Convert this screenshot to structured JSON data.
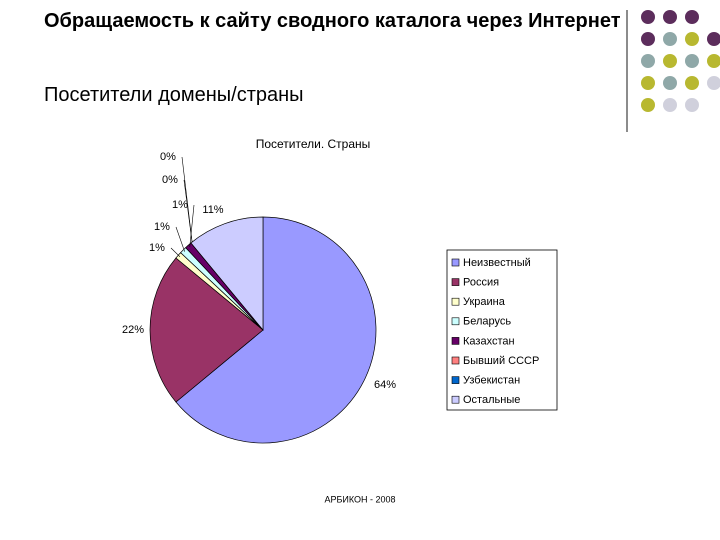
{
  "header": {
    "title": "Обращаемость к сайту сводного каталога через Интернет",
    "subtitle": "Посетители домены/страны"
  },
  "footer": "АРБИКОН - 2008",
  "chart_data": {
    "type": "pie",
    "title": "Посетители. Страны",
    "categories": [
      "Неизвестный",
      "Россия",
      "Украина",
      "Беларусь",
      "Казахстан",
      "Бывший СССР",
      "Узбекистан",
      "Остальные"
    ],
    "values": [
      64,
      22,
      1,
      1,
      1,
      0,
      0,
      11
    ],
    "value_labels": [
      "64%",
      "22%",
      "1%",
      "1%",
      "1%",
      "0%",
      "0%",
      "11%"
    ],
    "colors": [
      "#9999ff",
      "#993366",
      "#ffffcc",
      "#ccffff",
      "#660066",
      "#ff8080",
      "#0066cc",
      "#ccccff"
    ],
    "legend": "right"
  }
}
